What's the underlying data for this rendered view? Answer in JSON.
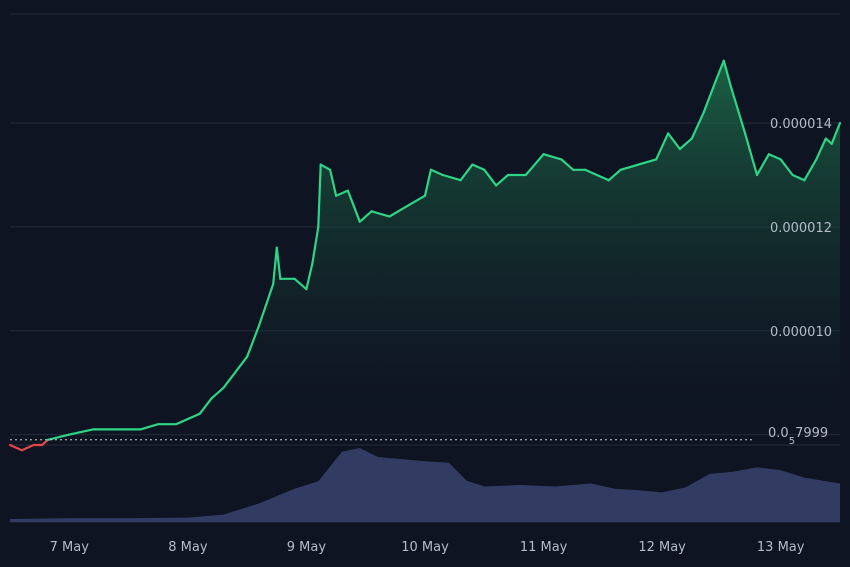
{
  "chart_data": {
    "type": "area",
    "x_labels": [
      "7 May",
      "8 May",
      "9 May",
      "10 May",
      "11 May",
      "12 May",
      "13 May"
    ],
    "y_tick_labels": [
      "0.000014",
      "0.000012",
      "0.000010",
      "0.0_5 7999"
    ],
    "y_ticks": [
      1.4e-05,
      1.2e-05,
      1e-05,
      8e-06
    ],
    "reference_value": 7.9e-06,
    "reference_label_main": "0.0",
    "reference_label_sub": "5",
    "reference_label_tail": "7999",
    "ylim": [
      7.8e-06,
      1.61e-05
    ],
    "x_range": [
      6.5,
      13.5
    ],
    "grid": true,
    "colors": {
      "background": "#0f1422",
      "up_line": "#2ed585",
      "down_line": "#e0484b",
      "area_top": "#1d6e4a",
      "volume": "#323c63",
      "grid": "#252c3d",
      "tick_text": "#b4bac8"
    },
    "price_series": [
      [
        6.5,
        7.8e-06
      ],
      [
        6.6,
        7.7e-06
      ],
      [
        6.7,
        7.8e-06
      ],
      [
        6.77,
        7.8e-06
      ],
      [
        6.82,
        7.9e-06
      ],
      [
        7.0,
        8e-06
      ],
      [
        7.2,
        8.1e-06
      ],
      [
        7.4,
        8.1e-06
      ],
      [
        7.6,
        8.1e-06
      ],
      [
        7.75,
        8.2e-06
      ],
      [
        7.9,
        8.2e-06
      ],
      [
        8.0,
        8.3e-06
      ],
      [
        8.1,
        8.4e-06
      ],
      [
        8.2,
        8.7e-06
      ],
      [
        8.3,
        8.9e-06
      ],
      [
        8.4,
        9.2e-06
      ],
      [
        8.5,
        9.5e-06
      ],
      [
        8.55,
        9.8e-06
      ],
      [
        8.6,
        1.01e-05
      ],
      [
        8.66,
        1.05e-05
      ],
      [
        8.72,
        1.09e-05
      ],
      [
        8.75,
        1.16e-05
      ],
      [
        8.78,
        1.1e-05
      ],
      [
        8.9,
        1.1e-05
      ],
      [
        9.0,
        1.08e-05
      ],
      [
        9.05,
        1.13e-05
      ],
      [
        9.1,
        1.2e-05
      ],
      [
        9.12,
        1.32e-05
      ],
      [
        9.2,
        1.31e-05
      ],
      [
        9.25,
        1.26e-05
      ],
      [
        9.35,
        1.27e-05
      ],
      [
        9.45,
        1.21e-05
      ],
      [
        9.55,
        1.23e-05
      ],
      [
        9.7,
        1.22e-05
      ],
      [
        9.85,
        1.24e-05
      ],
      [
        10.0,
        1.26e-05
      ],
      [
        10.05,
        1.31e-05
      ],
      [
        10.15,
        1.3e-05
      ],
      [
        10.3,
        1.29e-05
      ],
      [
        10.4,
        1.32e-05
      ],
      [
        10.5,
        1.31e-05
      ],
      [
        10.6,
        1.28e-05
      ],
      [
        10.7,
        1.3e-05
      ],
      [
        10.85,
        1.3e-05
      ],
      [
        11.0,
        1.34e-05
      ],
      [
        11.15,
        1.33e-05
      ],
      [
        11.25,
        1.31e-05
      ],
      [
        11.35,
        1.31e-05
      ],
      [
        11.45,
        1.3e-05
      ],
      [
        11.55,
        1.29e-05
      ],
      [
        11.65,
        1.31e-05
      ],
      [
        11.8,
        1.32e-05
      ],
      [
        11.95,
        1.33e-05
      ],
      [
        12.05,
        1.38e-05
      ],
      [
        12.15,
        1.35e-05
      ],
      [
        12.25,
        1.37e-05
      ],
      [
        12.35,
        1.42e-05
      ],
      [
        12.45,
        1.48e-05
      ],
      [
        12.52,
        1.52e-05
      ],
      [
        12.58,
        1.47e-05
      ],
      [
        12.7,
        1.38e-05
      ],
      [
        12.8,
        1.3e-05
      ],
      [
        12.9,
        1.34e-05
      ],
      [
        13.0,
        1.33e-05
      ],
      [
        13.1,
        1.3e-05
      ],
      [
        13.2,
        1.29e-05
      ],
      [
        13.3,
        1.33e-05
      ],
      [
        13.38,
        1.37e-05
      ],
      [
        13.43,
        1.36e-05
      ],
      [
        13.5,
        1.4e-05
      ]
    ],
    "volume_series": [
      [
        6.5,
        0.04
      ],
      [
        7.0,
        0.05
      ],
      [
        7.5,
        0.05
      ],
      [
        8.0,
        0.06
      ],
      [
        8.3,
        0.1
      ],
      [
        8.6,
        0.25
      ],
      [
        8.9,
        0.45
      ],
      [
        9.1,
        0.55
      ],
      [
        9.3,
        0.95
      ],
      [
        9.45,
        1.0
      ],
      [
        9.6,
        0.88
      ],
      [
        9.8,
        0.85
      ],
      [
        10.0,
        0.82
      ],
      [
        10.2,
        0.8
      ],
      [
        10.35,
        0.56
      ],
      [
        10.5,
        0.48
      ],
      [
        10.8,
        0.5
      ],
      [
        11.1,
        0.48
      ],
      [
        11.4,
        0.52
      ],
      [
        11.6,
        0.45
      ],
      [
        11.8,
        0.43
      ],
      [
        12.0,
        0.4
      ],
      [
        12.2,
        0.47
      ],
      [
        12.4,
        0.65
      ],
      [
        12.6,
        0.68
      ],
      [
        12.8,
        0.74
      ],
      [
        13.0,
        0.7
      ],
      [
        13.2,
        0.6
      ],
      [
        13.35,
        0.56
      ],
      [
        13.5,
        0.52
      ]
    ]
  }
}
